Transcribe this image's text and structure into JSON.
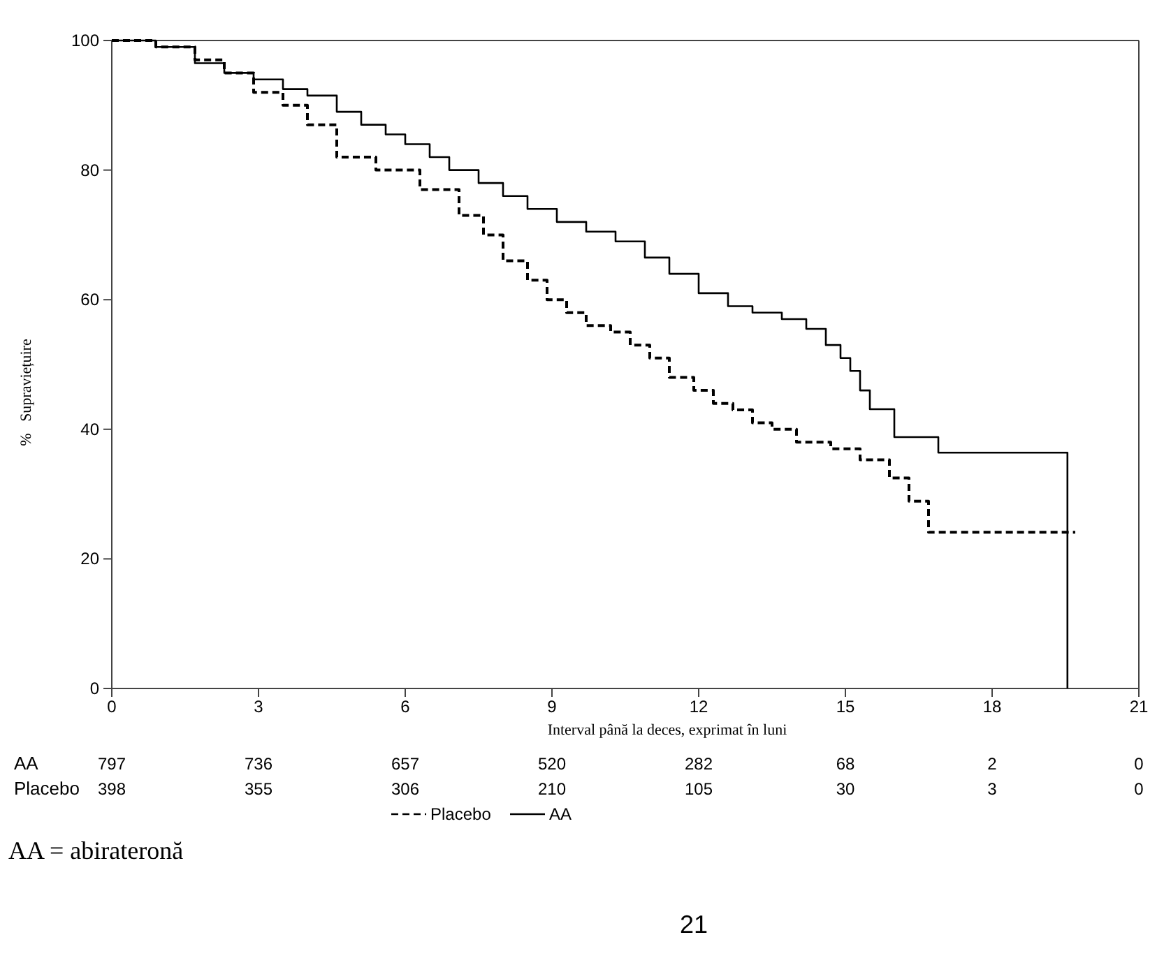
{
  "chart_data": {
    "type": "step",
    "xlabel": "Interval până la deces, exprimat în luni",
    "ylabel": "%   Supraviețuire",
    "xlim": [
      0,
      21
    ],
    "xticks": [
      0,
      3,
      6,
      9,
      12,
      15,
      18,
      21
    ],
    "ylim": [
      0,
      100
    ],
    "yticks": [
      0,
      20,
      40,
      60,
      80,
      100
    ],
    "grid": false,
    "legend": "bottom",
    "marker": "none",
    "series": [
      {
        "name": "Placebo",
        "color": "#000000",
        "line_style": "dashed",
        "x": [
          0,
          0.9,
          1.7,
          2.3,
          2.9,
          3.5,
          4.0,
          4.6,
          5.4,
          6.3,
          7.1,
          7.6,
          8.0,
          8.5,
          8.9,
          9.3,
          9.7,
          10.2,
          10.6,
          11.0,
          11.4,
          11.9,
          12.3,
          12.7,
          13.1,
          13.5,
          14.0,
          14.7,
          15.3,
          15.9,
          16.3,
          16.7,
          19.7
        ],
        "values": [
          100,
          99,
          97,
          95,
          92,
          90,
          87,
          82,
          80,
          77,
          73,
          70,
          66,
          63,
          60,
          58,
          56,
          55,
          53,
          51,
          48,
          46,
          44,
          43,
          41,
          40,
          38,
          37,
          35.3,
          32.5,
          28.9,
          24.1,
          24.1
        ]
      },
      {
        "name": "AA",
        "color": "#000000",
        "line_style": "solid",
        "x": [
          0,
          0.9,
          1.7,
          2.3,
          2.9,
          3.5,
          4.0,
          4.6,
          5.1,
          5.6,
          6.0,
          6.5,
          6.9,
          7.5,
          8.0,
          8.5,
          9.1,
          9.7,
          10.3,
          10.9,
          11.4,
          12.0,
          12.6,
          13.1,
          13.7,
          14.2,
          14.6,
          14.9,
          15.1,
          15.3,
          15.5,
          16.0,
          16.9,
          19.54
        ],
        "values": [
          100,
          99,
          96.5,
          95,
          94,
          92.5,
          91.5,
          89,
          87,
          85.5,
          84,
          82,
          80,
          78,
          76,
          74,
          72,
          70.5,
          69,
          66.5,
          64,
          61,
          59,
          58,
          57,
          55.5,
          53,
          51,
          49,
          46,
          43.1,
          38.8,
          36.4,
          0
        ]
      }
    ],
    "annotations": [
      "AA",
      "797",
      "736",
      "657",
      "520",
      "282",
      "68",
      "2",
      "0",
      "Placebo",
      "398",
      "355",
      "306",
      "210",
      "105",
      "30",
      "3",
      "0",
      "AA = abirateronă",
      "21"
    ]
  }
}
